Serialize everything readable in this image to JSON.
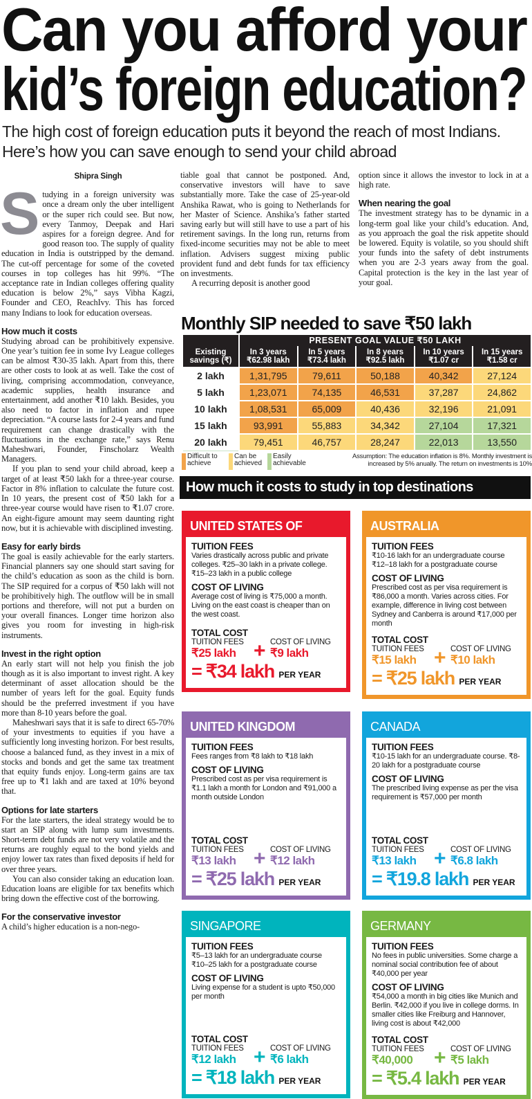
{
  "headline_lines": [
    "Can you afford your",
    "kid’s foreign education?"
  ],
  "subtitle": "The high cost of foreign education puts it beyond the reach of most Indians. Here’s how you can save enough to send your child abroad",
  "byline": "Shipra Singh",
  "dropcap": "S",
  "columns": {
    "left": [
      {
        "type": "p",
        "dropcap": true,
        "text": "tudying in a foreign university was once a dream only the uber intelligent or the super rich could see. But now, every Tanmoy, Deepak and Hari aspires for a foreign degree. And for good reason too. The supply of quality education in India is outstripped by the demand. The cut-off percentage for some of the coveted courses in top colleges has hit 99%. “The acceptance rate in Indian colleges offering quality education is below 2%,” says Vibha Kagzi, Founder and CEO, ReachIvy. This has forced many Indians to look for education overseas."
      },
      {
        "type": "h",
        "text": "How much it costs"
      },
      {
        "type": "p",
        "text": "Studying abroad can be prohibitively expensive. One year’s tuition fee in some Ivy League colleges can be almost ₹30-35 lakh. Apart from this, there are other costs to look at as well. Take the cost of living, comprising accommodation, conveyance, academic supplies, health insurance and entertainment, add another ₹10 lakh. Besides, you also need to factor in inflation and rupee depreciation. “A course lasts for 2-4 years and fund requirement can change drastically with the fluctuations in the exchange rate,” says Renu Maheshwari, Founder, Finscholarz Wealth Managers."
      },
      {
        "type": "pi",
        "text": "If you plan to send your child abroad, keep a target of at least ₹50 lakh for a three-year course. Factor in 8% inflation to calculate the future cost. In 10 years, the present cost of ₹50 lakh for a three-year course would have risen to ₹1.07 crore. An eight-figure amount may seem daunting right now, but it is achievable with disciplined investing."
      },
      {
        "type": "h",
        "text": "Easy for early birds"
      },
      {
        "type": "p",
        "text": "The goal is easily achievable for the early starters. Financial planners say one should start saving for the child’s education as soon as the child is born. The SIP required for a corpus of ₹50 lakh will not be prohibitively high. The outflow will be in small portions and therefore, will not put a burden on your overall finances. Longer time horizon also gives you room for investing in high-risk instruments."
      },
      {
        "type": "h",
        "text": "Invest in the right option"
      },
      {
        "type": "p",
        "text": "An early start will not help you finish the job though as it is also important to invest right. A key determinant of asset allocation should be the number of years left for the goal. Equity funds should be the preferred investment if you have more than 8-10 years before the goal."
      },
      {
        "type": "pi",
        "text": "Maheshwari says that it is safe to direct 65-70% of your investments to equities if you have a sufficiently long investing horizon. For best results, choose a balanced fund, as they invest in a mix of stocks and bonds and get the same tax treatment that equity funds enjoy. Long-term gains are tax free up to ₹1 lakh and are taxed at 10% beyond that."
      },
      {
        "type": "h",
        "text": "Options for late starters"
      },
      {
        "type": "p",
        "text": "For the late starters, the ideal strategy would be to start an SIP along with lump sum investments. Short-term debt funds are not very volatile and the returns are roughly equal to the bond yields and enjoy lower tax rates than fixed deposits if held for over three years."
      },
      {
        "type": "pi",
        "text": "You can also consider taking an education loan. Education loans are eligible for tax benefits which bring down the effective cost of the borrowing."
      },
      {
        "type": "h",
        "text": "For the conservative investor"
      },
      {
        "type": "p",
        "text": "A child’s higher education is a non-nego-"
      }
    ],
    "middle": [
      {
        "type": "p",
        "text": "tiable goal that cannot be postponed. And, conservative investors will have to save substantially more. Take the case of 25-year-old Anshika Rawat, who is going to Netherlands for her Master of Science. Anshika’s father started saving early but will still have to use a part of his retirement savings. In the long run, returns from fixed-income securities may not be able to meet inflation. Advisers suggest mixing public provident fund and debt funds for tax efficiency on investments."
      },
      {
        "type": "pi",
        "text": "A recurring deposit is another good"
      }
    ],
    "right": [
      {
        "type": "p",
        "text": "option since it allows the investor to lock in at a high rate."
      },
      {
        "type": "h",
        "text": "When nearing the goal"
      },
      {
        "type": "p",
        "text": "The investment strategy has to be dynamic in a long-term goal like your child’s education. And, as you approach the goal the risk appetite should be lowered. Equity is volatile, so you should shift your funds into the safety of debt instruments when you are 2-3 years away from the goal. Capital protection is the key in the last year of your goal."
      }
    ]
  },
  "chart_data": {
    "type": "table",
    "title": "Monthly SIP needed to save ₹50 lakh",
    "group_header": "PRESENT GOAL VALUE ₹50 LAKH",
    "row_header_label": [
      "Existing",
      "savings (₹)"
    ],
    "columns": [
      {
        "line1": "In 3 years",
        "line2": "₹62.98 lakh"
      },
      {
        "line1": "In 5 years",
        "line2": "₹73.4 lakh"
      },
      {
        "line1": "In 8 years",
        "line2": "₹92.5 lakh"
      },
      {
        "line1": "In 10 years",
        "line2": "₹1.07 cr"
      },
      {
        "line1": "In 15 years",
        "line2": "₹1.58 cr"
      }
    ],
    "rows": [
      {
        "label": "2 lakh",
        "values": [
          "1,31,795",
          "79,611",
          "50,188",
          "40,342",
          "27,124"
        ],
        "levels": [
          "difficult",
          "difficult",
          "difficult",
          "difficult",
          "can"
        ]
      },
      {
        "label": "5 lakh",
        "values": [
          "1,23,071",
          "74,135",
          "46,531",
          "37,287",
          "24,862"
        ],
        "levels": [
          "difficult",
          "difficult",
          "difficult",
          "can",
          "can"
        ]
      },
      {
        "label": "10 lakh",
        "values": [
          "1,08,531",
          "65,009",
          "40,436",
          "32,196",
          "21,091"
        ],
        "levels": [
          "difficult",
          "difficult",
          "can",
          "can",
          "can"
        ]
      },
      {
        "label": "15 lakh",
        "values": [
          "93,991",
          "55,883",
          "34,342",
          "27,104",
          "17,321"
        ],
        "levels": [
          "difficult",
          "can",
          "can",
          "easy",
          "easy"
        ]
      },
      {
        "label": "20 lakh",
        "values": [
          "79,451",
          "46,757",
          "28,247",
          "22,013",
          "13,550"
        ],
        "levels": [
          "can",
          "can",
          "can",
          "easy",
          "easy"
        ]
      }
    ],
    "legend": [
      {
        "key": "difficult",
        "line1": "Difficult to",
        "line2": "achieve",
        "color": "#f2a34a"
      },
      {
        "key": "can",
        "line1": "Can be",
        "line2": "achieved",
        "color": "#fcd87a"
      },
      {
        "key": "easy",
        "line1": "Easily",
        "line2": "achievable",
        "color": "#b6d79b"
      }
    ],
    "assumption": "Assumption: The education inflation is 8%. Monthly investment is increased by 5% anually. The return on investments is 10%"
  },
  "destinations": {
    "title": "How much it costs to study in top destinations",
    "labels": {
      "tuition": "TUITION FEES",
      "living": "COST OF LIVING",
      "total": "TOTAL COST",
      "tuition_small": "TUITION FEES",
      "living_small": "COST OF LIVING",
      "per_year": "PER YEAR",
      "plus": "+",
      "equals": "="
    },
    "countries": [
      {
        "name": "UNITED STATES OF AMERICA",
        "bold": true,
        "color": "#e8192c",
        "tuition": "Varies drastically across public and private colleges. ₹25–30 lakh in a private college. ₹15–23 lakh in a public college",
        "living": "Average cost of living is ₹75,000 a month. Living on the east coast is cheaper than on the west coast.",
        "tuition_total": "₹25 lakh",
        "living_total": "₹9 lakh",
        "total": "₹34 lakh"
      },
      {
        "name": "AUSTRALIA",
        "bold": true,
        "color": "#f0962a",
        "tuition": "₹10-16 lakh for an undergraduate course ₹12–18 lakh for a postgraduate course",
        "living": "Prescribed cost as per visa requirement is ₹86,000 a month. Varies across cities. For example, difference in living cost between Sydney and Canberra is around ₹17,000 per month",
        "tuition_total": "₹15 lakh",
        "living_total": "₹10 lakh",
        "total": "₹25 lakh"
      },
      {
        "name": "UNITED KINGDOM",
        "bold": true,
        "color": "#8f6aaf",
        "tuition": "Fees ranges from ₹8 lakh to ₹18 lakh",
        "living": "Prescribed cost as per visa requirement is ₹1.1 lakh a month for London and ₹91,000 a month outside London",
        "tuition_total": "₹13 lakh",
        "living_total": "₹12 lakh",
        "total": "₹25 lakh"
      },
      {
        "name": "CANADA",
        "bold": false,
        "color": "#12a5dc",
        "tuition": "₹10-15 lakh for an undergraduate course. ₹8-20 lakh for a postgraduate course",
        "living": "The prescribed living expense as per the visa requirement is ₹57,000 per month",
        "tuition_total": "₹13 lakh",
        "living_total": "₹6.8 lakh",
        "total": "₹19.8 lakh"
      },
      {
        "name": "SINGAPORE",
        "bold": false,
        "color": "#00b4bd",
        "tuition": "₹5–13 lakh for an undergraduate course ₹10–25 lakh for a postgraduate course",
        "living": "Living expense for a student is upto ₹50,000 per month",
        "tuition_total": "₹12 lakh",
        "living_total": "₹6 lakh",
        "total": "₹18 lakh"
      },
      {
        "name": "GERMANY",
        "bold": false,
        "color": "#77b843",
        "tuition": "No fees in public universities. Some charge a nominal social contribution fee of about ₹40,000 per year",
        "living": "₹54,000 a month in big cities like Munich and Berlin. ₹42,000 if you live in college dorms. In smaller cities like Freiburg and Hannover, living cost is about ₹42,000",
        "tuition_total": "₹40,000",
        "living_total": "₹5 lakh",
        "total": "₹5.4 lakh"
      }
    ]
  }
}
